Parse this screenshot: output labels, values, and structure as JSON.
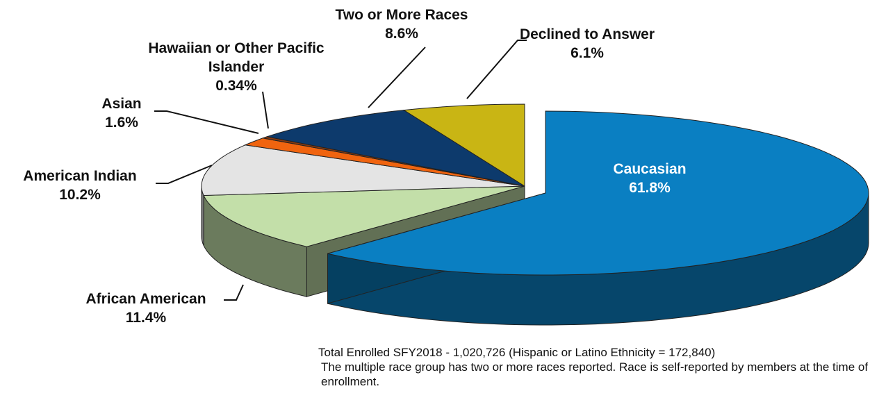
{
  "chart_data": {
    "type": "pie",
    "categories": [
      "Caucasian",
      "African American",
      "American Indian",
      "Asian",
      "Hawaiian or Other Pacific Islander",
      "Two or More Races",
      "Declined to Answer"
    ],
    "values": [
      61.8,
      11.4,
      10.2,
      1.6,
      0.34,
      8.6,
      6.1
    ],
    "value_labels": [
      "61.8%",
      "11.4%",
      "10.2%",
      "1.6%",
      "0.34%",
      "8.6%",
      "6.1%"
    ],
    "colors": [
      "#0a7fc2",
      "#c3dfa9",
      "#e4e4e4",
      "#f0640f",
      "#8a3a10",
      "#0d3a6c",
      "#c9b514"
    ],
    "notes": [
      "Total Enrolled SFY2018 - 1,020,726 (Hispanic or Latino Ethnicity = 172,840)",
      "The multiple race group has two or more races reported.  Race is self-reported by members at the time of enrollment."
    ]
  }
}
